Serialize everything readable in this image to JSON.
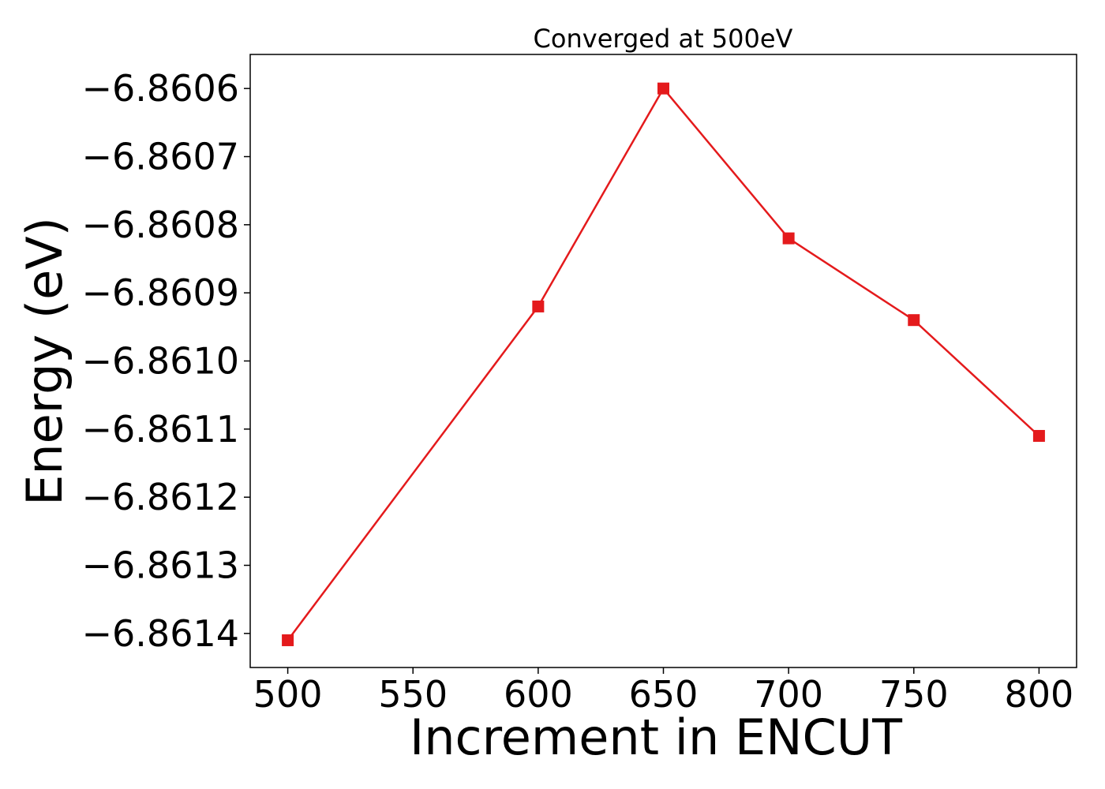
{
  "chart_data": {
    "type": "line",
    "title": "Converged at 500eV",
    "xlabel": "Increment in ENCUT",
    "ylabel": "Energy (eV)",
    "x": [
      500,
      600,
      650,
      700,
      750,
      800
    ],
    "series": [
      {
        "values": [
          -6.86141,
          -6.86092,
          -6.8606,
          -6.86082,
          -6.86094,
          -6.86111
        ],
        "color": "#e41a1c",
        "marker": "square"
      }
    ],
    "xticks": [
      500,
      550,
      600,
      650,
      700,
      750,
      800
    ],
    "xtick_labels": [
      "500",
      "550",
      "600",
      "650",
      "700",
      "750",
      "800"
    ],
    "yticks": [
      -6.8614,
      -6.8613,
      -6.8612,
      -6.8611,
      -6.861,
      -6.8609,
      -6.8608,
      -6.8607,
      -6.8606
    ],
    "ytick_labels": [
      "−6.8614",
      "−6.8613",
      "−6.8612",
      "−6.8611",
      "−6.8610",
      "−6.8609",
      "−6.8608",
      "−6.8607",
      "−6.8606"
    ],
    "xlim": [
      485,
      815
    ],
    "ylim": [
      -6.86145,
      -6.86055
    ],
    "grid": false,
    "legend": "none"
  }
}
